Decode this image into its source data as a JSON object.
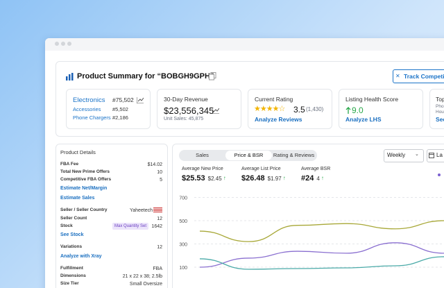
{
  "summary": {
    "title": "Product Summary for “BOBGH9GPH”",
    "track_button": "Track Competitors",
    "categories_card": {
      "rows": [
        {
          "name": "Electronics",
          "rank": "#75,502"
        },
        {
          "name": "Accessories",
          "rank": "#5,502"
        },
        {
          "name": "Phone Chargers",
          "rank": "#2,186"
        }
      ]
    },
    "revenue_card": {
      "label": "30-Day Revenue",
      "value": "$23,556,345",
      "unit_sales": "Unit Sales: 45,875"
    },
    "rating_card": {
      "label": "Current Rating",
      "rating": "3.5",
      "count": "(1,430)",
      "link": "Analyze Reviews"
    },
    "health_card": {
      "label": "Listing Health Score",
      "value": "9.0",
      "link": "Analyze LHS"
    },
    "top_card": {
      "label": "Top",
      "lines": [
        "Pho",
        "Hou"
      ],
      "link": "See"
    }
  },
  "details": {
    "title": "Product Details",
    "rows": [
      {
        "label": "FBA Fee",
        "value": "$14.02"
      },
      {
        "label": "Total New Prime Offers",
        "value": "10"
      },
      {
        "label": "Competitive FBA Offers",
        "value": "5"
      },
      {
        "link": "Estimate Net/Margin"
      },
      {
        "link": "Estimate Sales"
      },
      {
        "label": "Seller / Seller Country",
        "value": "Yaheetech"
      },
      {
        "label": "Seller Count",
        "value": "12"
      },
      {
        "label": "Stock",
        "badge": "Max Quantity Set",
        "value": "1642"
      },
      {
        "link": "See Stock"
      },
      {
        "label": "Variations",
        "value": "12"
      },
      {
        "link": "Analyze with Xray"
      },
      {
        "label": "Fulfillment",
        "value": "FBA"
      },
      {
        "label": "Dimensions",
        "value": "21 x 22 x 38; 2.5lb"
      },
      {
        "label": "Size Tier",
        "value": "Small Oversize"
      }
    ]
  },
  "tabs": [
    "Sales",
    "Price & BSR",
    "Rating & Reviews"
  ],
  "dropdowns": [
    "Weekly",
    "La"
  ],
  "metrics": [
    {
      "label": "Average New Price",
      "value": "$25.53",
      "change": "$2.45"
    },
    {
      "label": "Average List Price",
      "value": "$26.48",
      "change": "$1.97"
    },
    {
      "label": "Average BSR",
      "value": "#24",
      "change": "4"
    }
  ],
  "chart_data": {
    "type": "line",
    "categories": [
      null,
      null,
      null,
      null,
      null,
      null
    ],
    "series": [
      {
        "color": "#a8a838",
        "values": [
          410,
          320,
          460,
          475,
          430,
          500
        ]
      },
      {
        "color": "#8a6fd0",
        "values": [
          100,
          178,
          237,
          220,
          310,
          220
        ]
      },
      {
        "color": "#4aaaa8",
        "values": [
          172,
          82,
          88,
          94,
          112,
          190
        ]
      }
    ],
    "ylim": [
      0,
      800
    ],
    "yticks": [
      100,
      300,
      500,
      700
    ],
    "grid": true
  }
}
